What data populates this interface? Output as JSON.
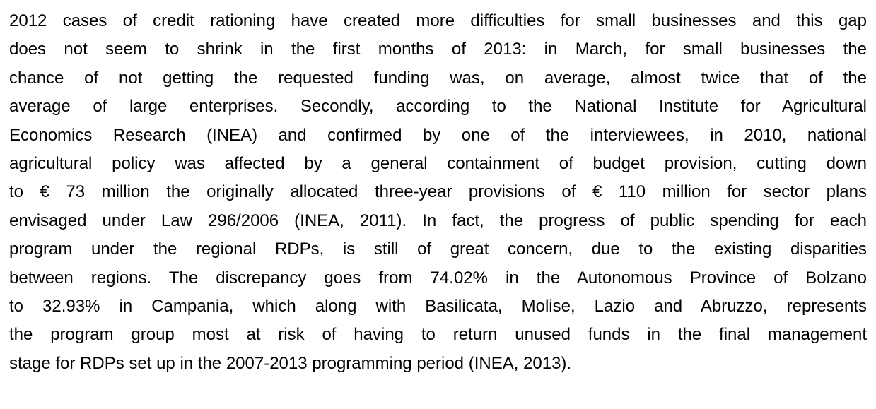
{
  "paragraph": {
    "lines": [
      "2012 cases of credit rationing have created more difficulties for small businesses and this gap",
      "does not seem to shrink in the first months of 2013: in March, for small businesses the",
      "chance of not getting the requested funding was, on average, almost twice that of the",
      "average of large enterprises. Secondly, according to the National Institute for Agricultural",
      "Economics Research (INEA) and confirmed by one of the interviewees, in 2010, national",
      "agricultural policy was affected by a general containment of budget provision, cutting down",
      "to € 73 million the originally allocated three-year provisions of € 110 million for sector plans",
      "envisaged under Law 296/2006 (INEA, 2011). In fact, the progress of public spending for each",
      "program under the regional RDPs, is still of great concern, due to the existing disparities",
      "between regions. The discrepancy goes from 74.02% in the Autonomous Province of Bolzano",
      "to 32.93% in Campania, which along with Basilicata, Molise, Lazio and Abruzzo, represents",
      "the program group most at risk of having to return unused funds in the final management",
      "stage for RDPs set up in the 2007-2013 programming period (INEA, 2013)."
    ]
  }
}
